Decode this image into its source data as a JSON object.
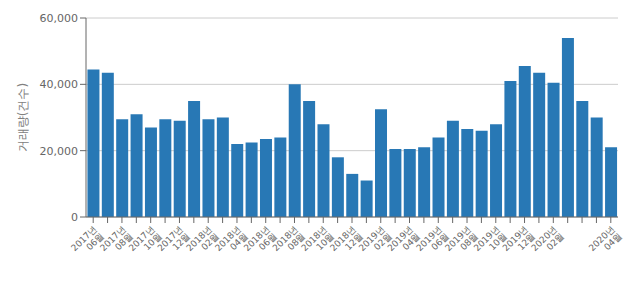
{
  "chart_data": {
    "type": "bar",
    "ylabel": "거래량(건수)",
    "color": "#2878B5",
    "ylim": [
      0,
      60000
    ],
    "yticks": [
      0,
      {
        "value": 20000,
        "label": "20,000"
      },
      {
        "value": 40000,
        "label": "40,000"
      },
      {
        "value": 60000,
        "label": "60,000"
      }
    ],
    "grid": true,
    "categories": [
      "2017년\n06월",
      null,
      "2017년\n08월",
      null,
      "2017년\n10월",
      null,
      "2017년\n12월",
      null,
      "2018년\n02월",
      null,
      "2018년\n04월",
      null,
      "2018년\n06월",
      null,
      "2018년\n08월",
      null,
      "2018년\n10월",
      null,
      "2018년\n12월",
      null,
      "2019년\n02월",
      null,
      "2019년\n04월",
      null,
      "2019년\n06월",
      null,
      "2019년\n08월",
      null,
      "2019년\n10월",
      null,
      "2019년\n12월",
      null,
      "2020년\n02월",
      null,
      null,
      null,
      "2020년\n04월"
    ],
    "values": [
      44500,
      43500,
      29500,
      31000,
      27000,
      29500,
      29000,
      35000,
      29500,
      30000,
      22000,
      22500,
      23500,
      24000,
      40000,
      35000,
      28000,
      18000,
      13000,
      11000,
      32500,
      20500,
      20500,
      21000,
      24000,
      29000,
      26500,
      26000,
      28000,
      41000,
      45500,
      43500,
      40500,
      54000,
      35000,
      30000,
      21000
    ]
  }
}
